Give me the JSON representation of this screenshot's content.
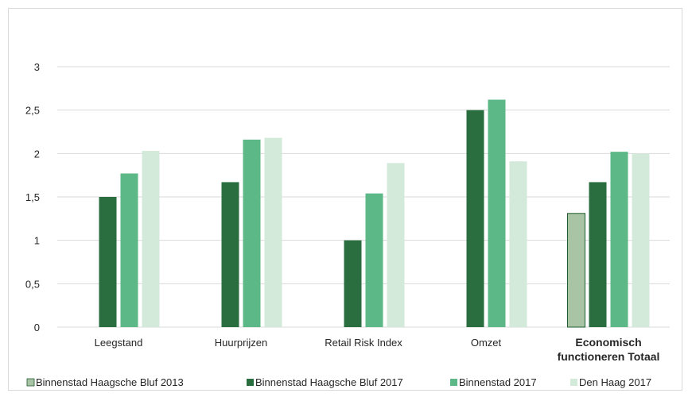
{
  "chart_data": {
    "type": "bar",
    "categories": [
      "Leegstand",
      "Huurprijzen",
      "Retail Risk Index",
      "Omzet",
      "Economisch functioneren Totaal"
    ],
    "category_labels": [
      [
        "Leegstand"
      ],
      [
        "Huurprijzen"
      ],
      [
        "Retail Risk Index"
      ],
      [
        "Omzet"
      ],
      [
        "Economisch",
        "functioneren Totaal"
      ]
    ],
    "bold_category": "Economisch functioneren Totaal",
    "series": [
      {
        "name": "Binnenstad Haagsche Bluf 2013",
        "color": "#a9c4a4",
        "values": [
          null,
          null,
          null,
          null,
          1.31
        ]
      },
      {
        "name": "Binnenstad Haagsche Bluf 2017",
        "color": "#2a6e40",
        "values": [
          1.5,
          1.67,
          1.0,
          2.5,
          1.67
        ]
      },
      {
        "name": "Binnenstad 2017",
        "color": "#5cb887",
        "values": [
          1.77,
          2.16,
          1.54,
          2.62,
          2.02
        ]
      },
      {
        "name": "Den Haag 2017",
        "color": "#d3eadb",
        "values": [
          2.03,
          2.18,
          1.89,
          1.91,
          2.0
        ]
      }
    ],
    "yticks": [
      "0",
      "0,5",
      "1",
      "1,5",
      "2",
      "2,5",
      "3"
    ],
    "ylim": [
      0,
      3
    ],
    "grid": true,
    "legend_position": "bottom",
    "title": "",
    "xlabel": "",
    "ylabel": ""
  }
}
